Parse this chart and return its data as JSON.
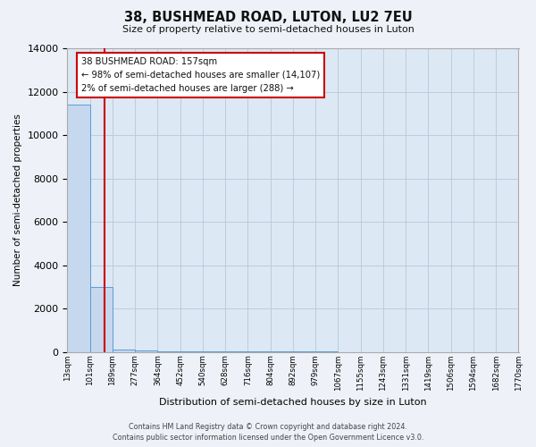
{
  "title": "38, BUSHMEAD ROAD, LUTON, LU2 7EU",
  "subtitle": "Size of property relative to semi-detached houses in Luton",
  "xlabel": "Distribution of semi-detached houses by size in Luton",
  "ylabel": "Number of semi-detached properties",
  "bin_labels": [
    "13sqm",
    "101sqm",
    "189sqm",
    "277sqm",
    "364sqm",
    "452sqm",
    "540sqm",
    "628sqm",
    "716sqm",
    "804sqm",
    "892sqm",
    "979sqm",
    "1067sqm",
    "1155sqm",
    "1243sqm",
    "1331sqm",
    "1419sqm",
    "1506sqm",
    "1594sqm",
    "1682sqm",
    "1770sqm"
  ],
  "bar_values": [
    11400,
    3000,
    100,
    50,
    20,
    10,
    5,
    3,
    2,
    1,
    1,
    1,
    0,
    0,
    0,
    0,
    0,
    0,
    0,
    0
  ],
  "bar_color": "#c5d8ed",
  "bar_edge_color": "#5b9bd5",
  "property_line_x": 1.65,
  "property_line_color": "#cc0000",
  "ylim": [
    0,
    14000
  ],
  "yticks": [
    0,
    2000,
    4000,
    6000,
    8000,
    10000,
    12000,
    14000
  ],
  "annotation_title": "38 BUSHMEAD ROAD: 157sqm",
  "annotation_line1": "← 98% of semi-detached houses are smaller (14,107)",
  "annotation_line2": "2% of semi-detached houses are larger (288) →",
  "annotation_box_color": "#ffffff",
  "annotation_box_edge": "#cc0000",
  "footer_line1": "Contains HM Land Registry data © Crown copyright and database right 2024.",
  "footer_line2": "Contains public sector information licensed under the Open Government Licence v3.0.",
  "fig_bg_color": "#eef2f8",
  "axes_bg_color": "#dce8f4",
  "grid_color": "#b8c8d8"
}
